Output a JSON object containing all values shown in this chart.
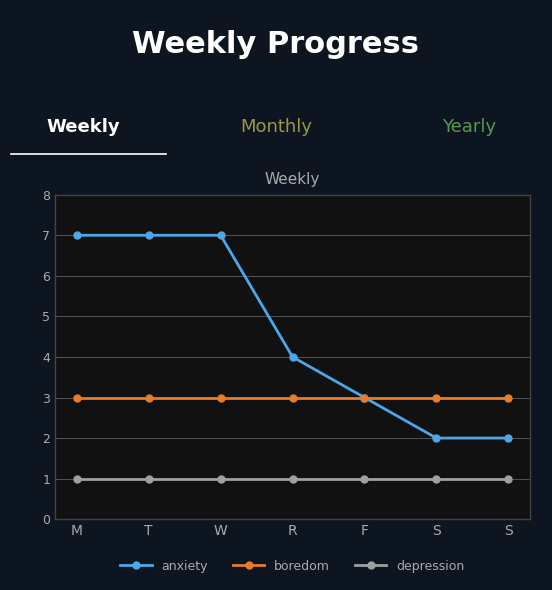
{
  "title": "Weekly Progress",
  "chart_title": "Weekly",
  "x_labels": [
    "M",
    "T",
    "W",
    "R",
    "F",
    "S",
    "S"
  ],
  "anxiety": [
    7,
    7,
    7,
    4,
    3,
    2,
    2
  ],
  "boredom": [
    3,
    3,
    3,
    3,
    3,
    3,
    3
  ],
  "depression": [
    1,
    1,
    1,
    1,
    1,
    1,
    1
  ],
  "anxiety_color": "#4da6e8",
  "boredom_color": "#e87c2a",
  "depression_color": "#a0a0a0",
  "ylim": [
    0,
    8
  ],
  "yticks": [
    0,
    1,
    2,
    3,
    4,
    5,
    6,
    7,
    8
  ],
  "background_outer": "#0d1520",
  "background_chart": "#111111",
  "grid_color": "#555555",
  "text_color_white": "#ffffff",
  "text_color_gray": "#aaaaaa",
  "tab_weekly_color": "#ffffff",
  "tab_monthly_color": "#999944",
  "tab_yearly_color": "#559955",
  "legend_labels": [
    "anxiety",
    "boredom",
    "depression"
  ]
}
